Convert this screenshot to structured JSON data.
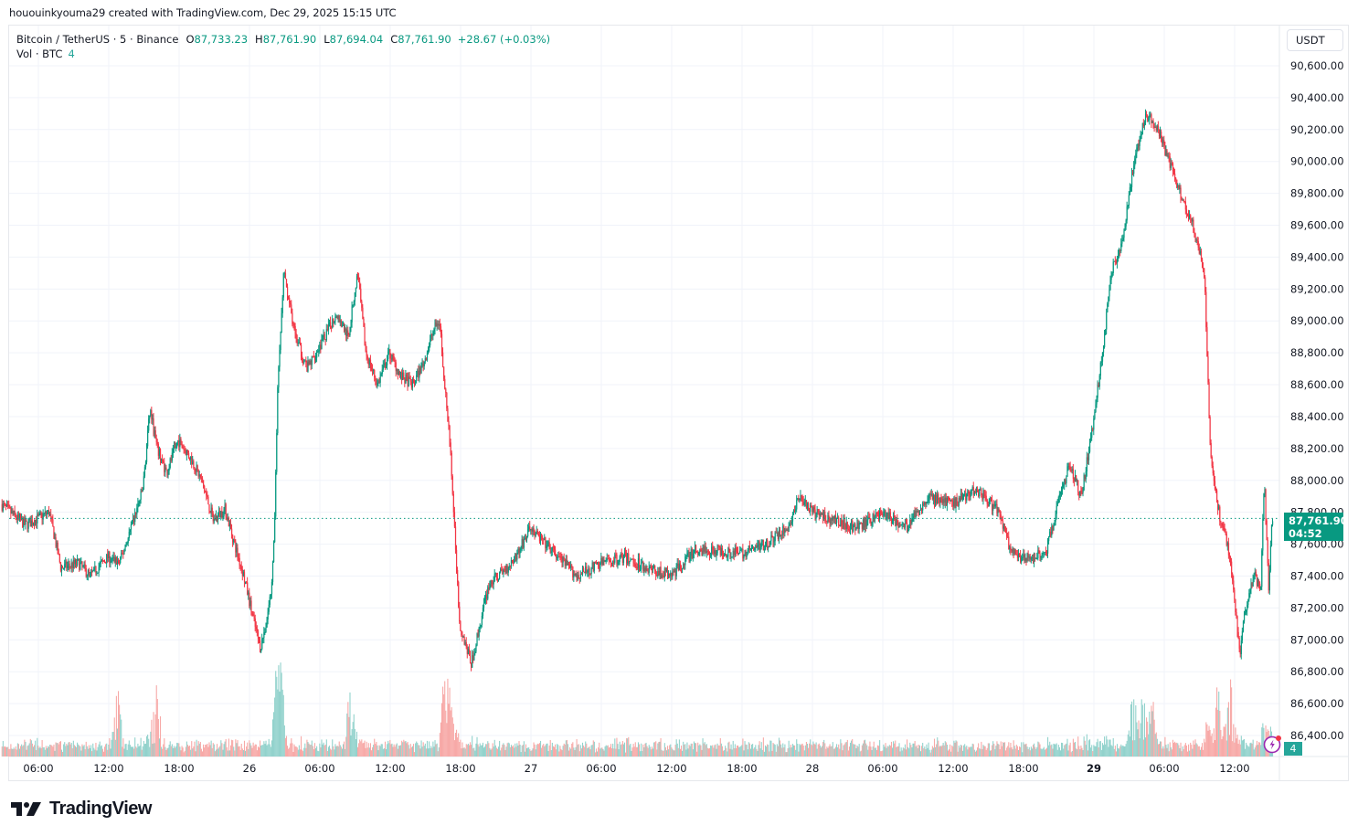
{
  "header": {
    "credit": "hououinkyouma29 created with TradingView.com, Dec 29, 2025 15:15 UTC"
  },
  "legend": {
    "symbol": "Bitcoin / TetherUS · 5 · Binance",
    "open_label": "O",
    "open": "87,733.23",
    "high_label": "H",
    "high": "87,761.90",
    "low_label": "L",
    "low": "87,694.04",
    "close_label": "C",
    "close": "87,761.90",
    "change": "+28.67 (+0.03%)",
    "volume_label": "Vol · BTC",
    "volume": "4"
  },
  "price_axis": {
    "currency": "USDT",
    "last_price": "87,761.90",
    "countdown": "04:52",
    "volume_badge": "4"
  },
  "branding": {
    "logo_text": "TradingView"
  },
  "colors": {
    "up": "#089981",
    "down": "#f23645",
    "vol_up": "#92d2cc",
    "vol_down": "#f7a9a7",
    "grid": "#f0f3fa",
    "price_line": "#089981",
    "bolt": "#9c27b0"
  },
  "chart_data": {
    "type": "candlestick",
    "title": "Bitcoin / TetherUS · 5 · Binance",
    "interval": "5m",
    "xlabel": "",
    "ylabel": "USDT",
    "ylim": [
      86300,
      90700
    ],
    "y_ticks": [
      90600,
      90400,
      90200,
      90000,
      89800,
      89600,
      89400,
      89200,
      89000,
      88800,
      88600,
      88400,
      88200,
      88000,
      87800,
      87600,
      87400,
      87200,
      87000,
      86800,
      86600,
      86400
    ],
    "y_tick_labels": [
      "90,600.00",
      "90,400.00",
      "90,200.00",
      "90,000.00",
      "89,800.00",
      "89,600.00",
      "89,400.00",
      "89,200.00",
      "89,000.00",
      "88,800.00",
      "88,600.00",
      "88,400.00",
      "88,200.00",
      "88,000.00",
      "87,800.00",
      "87,600.00",
      "87,400.00",
      "87,200.00",
      "87,000.00",
      "86,800.00",
      "86,600.00",
      "86,400.00"
    ],
    "x_tick_labels": [
      "06:00",
      "12:00",
      "18:00",
      "26",
      "06:00",
      "12:00",
      "18:00",
      "27",
      "06:00",
      "12:00",
      "18:00",
      "28",
      "06:00",
      "12:00",
      "18:00",
      "29",
      "06:00",
      "12:00"
    ],
    "x_tick_hours": [
      6,
      12,
      18,
      24,
      30,
      36,
      42,
      48,
      54,
      60,
      66,
      72,
      78,
      84,
      90,
      96,
      102,
      108
    ],
    "x_range_hours": [
      2.9,
      111.25
    ],
    "last_price": 87761.9,
    "grid": true,
    "price_path_waypoints": {
      "description": "Approximate closing-price path read from chart; hour offsets from Dec 25 00:00 UTC",
      "hours": [
        2.9,
        4.0,
        5.0,
        7.0,
        7.3,
        8.0,
        9.5,
        10.5,
        12.0,
        13.0,
        14.0,
        15.0,
        15.6,
        16.2,
        17.0,
        18.0,
        19.0,
        20.0,
        21.0,
        22.0,
        23.0,
        23.6,
        24.5,
        25.0,
        25.5,
        26.0,
        26.2,
        26.5,
        27.0,
        28.0,
        29.0,
        30.5,
        31.5,
        32.5,
        33.3,
        34.0,
        35.0,
        36.0,
        37.0,
        38.0,
        39.0,
        39.8,
        40.3,
        40.6,
        41.2,
        42.0,
        43.0,
        44.5,
        46.0,
        47.0,
        48.0,
        50.0,
        52.0,
        54.0,
        56.0,
        58.0,
        60.0,
        62.0,
        64.0,
        66.0,
        68.0,
        70.0,
        71.0,
        72.0,
        74.0,
        76.0,
        78.0,
        80.0,
        82.0,
        84.0,
        86.0,
        88.0,
        89.0,
        90.0,
        92.0,
        93.0,
        94.0,
        95.0,
        96.0,
        97.0,
        97.5,
        98.5,
        99.5,
        100.5,
        101.5,
        102.5,
        103.5,
        104.5,
        105.5,
        106.0,
        106.5,
        107.0,
        107.5,
        108.0,
        108.5,
        109.0,
        109.8,
        110.3,
        110.6,
        111.0,
        111.25
      ],
      "prices": [
        87850,
        87780,
        87720,
        87800,
        87700,
        87450,
        87480,
        87400,
        87520,
        87480,
        87700,
        87950,
        88450,
        88200,
        88050,
        88250,
        88150,
        88000,
        87750,
        87820,
        87550,
        87400,
        87100,
        86950,
        87100,
        87350,
        87700,
        88600,
        89300,
        88900,
        88700,
        88900,
        89050,
        88900,
        89300,
        88800,
        88600,
        88800,
        88650,
        88600,
        88750,
        88950,
        89000,
        88700,
        88200,
        87100,
        86850,
        87350,
        87450,
        87550,
        87700,
        87550,
        87400,
        87480,
        87520,
        87450,
        87400,
        87560,
        87560,
        87540,
        87600,
        87700,
        87900,
        87800,
        87750,
        87700,
        87800,
        87700,
        87900,
        87850,
        87950,
        87800,
        87550,
        87500,
        87550,
        87850,
        88100,
        87900,
        88350,
        88900,
        89300,
        89500,
        90000,
        90300,
        90200,
        90000,
        89800,
        89600,
        89300,
        88200,
        87900,
        87700,
        87600,
        87300,
        86900,
        87200,
        87400,
        87300,
        88000,
        87300,
        87761.9
      ]
    },
    "volume_spikes_hours": [
      12.8,
      16.0,
      26.4,
      26.6,
      32.6,
      40.7,
      40.9,
      99.4,
      100.2,
      100.9,
      106.6,
      107.6
    ],
    "volume_note": "Volume histogram overlay at bottom; baseline small bars with spikes near the large moves"
  }
}
